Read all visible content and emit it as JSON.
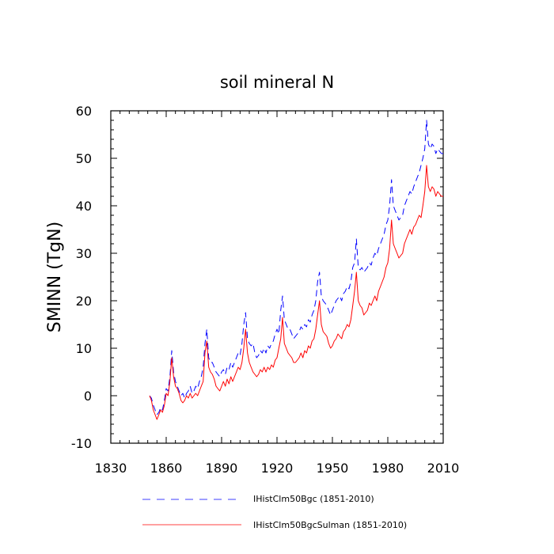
{
  "chart_data": {
    "type": "line",
    "title": "soil mineral N",
    "ylabel": "SMINN  (TgN)",
    "xlabel": "",
    "xlim": [
      1830,
      2010
    ],
    "ylim": [
      -10,
      60
    ],
    "x_ticks": [
      1830,
      1860,
      1890,
      1920,
      1950,
      1980,
      2010
    ],
    "y_ticks": [
      -10,
      0,
      10,
      20,
      30,
      40,
      50,
      60
    ],
    "grid": false,
    "legend_position": "bottom",
    "series": [
      {
        "name": "IHistClm50Bgc (1851-2010)",
        "color": "#0000ff",
        "dash": "dashed",
        "points": [
          [
            1851,
            0
          ],
          [
            1852,
            -0.5
          ],
          [
            1853,
            -2
          ],
          [
            1854,
            -3
          ],
          [
            1855,
            -4
          ],
          [
            1856,
            -3.5
          ],
          [
            1857,
            -2.5
          ],
          [
            1858,
            -3
          ],
          [
            1859,
            -1
          ],
          [
            1860,
            1.5
          ],
          [
            1861,
            1
          ],
          [
            1862,
            4
          ],
          [
            1863,
            9.5
          ],
          [
            1864,
            5
          ],
          [
            1865,
            3
          ],
          [
            1866,
            2
          ],
          [
            1867,
            1
          ],
          [
            1868,
            0
          ],
          [
            1869,
            0.5
          ],
          [
            1870,
            -0.5
          ],
          [
            1871,
            0.5
          ],
          [
            1872,
            1
          ],
          [
            1873,
            2
          ],
          [
            1874,
            0.5
          ],
          [
            1875,
            1
          ],
          [
            1876,
            2
          ],
          [
            1877,
            1.5
          ],
          [
            1878,
            3
          ],
          [
            1879,
            4
          ],
          [
            1880,
            6
          ],
          [
            1881,
            11
          ],
          [
            1882,
            14
          ],
          [
            1883,
            8
          ],
          [
            1884,
            7
          ],
          [
            1885,
            7
          ],
          [
            1886,
            6
          ],
          [
            1887,
            5
          ],
          [
            1888,
            4.5
          ],
          [
            1889,
            4
          ],
          [
            1890,
            5
          ],
          [
            1891,
            5.5
          ],
          [
            1892,
            4.5
          ],
          [
            1893,
            6
          ],
          [
            1894,
            5.5
          ],
          [
            1895,
            7
          ],
          [
            1896,
            6
          ],
          [
            1897,
            7
          ],
          [
            1898,
            8
          ],
          [
            1899,
            9
          ],
          [
            1900,
            8.5
          ],
          [
            1901,
            11
          ],
          [
            1902,
            15
          ],
          [
            1903,
            17.5
          ],
          [
            1904,
            12
          ],
          [
            1905,
            11
          ],
          [
            1906,
            10.5
          ],
          [
            1907,
            11
          ],
          [
            1908,
            9
          ],
          [
            1909,
            8
          ],
          [
            1910,
            8.5
          ],
          [
            1911,
            9.5
          ],
          [
            1912,
            9
          ],
          [
            1913,
            10
          ],
          [
            1914,
            9
          ],
          [
            1915,
            10.5
          ],
          [
            1916,
            10
          ],
          [
            1917,
            11
          ],
          [
            1918,
            11.5
          ],
          [
            1919,
            13
          ],
          [
            1920,
            14
          ],
          [
            1921,
            13
          ],
          [
            1922,
            18
          ],
          [
            1923,
            21
          ],
          [
            1924,
            16
          ],
          [
            1925,
            15
          ],
          [
            1926,
            14
          ],
          [
            1927,
            14
          ],
          [
            1928,
            13
          ],
          [
            1929,
            12
          ],
          [
            1930,
            12.5
          ],
          [
            1931,
            13
          ],
          [
            1932,
            13.5
          ],
          [
            1933,
            14.5
          ],
          [
            1934,
            14
          ],
          [
            1935,
            15
          ],
          [
            1936,
            14.5
          ],
          [
            1937,
            16
          ],
          [
            1938,
            15.5
          ],
          [
            1939,
            17
          ],
          [
            1940,
            18
          ],
          [
            1941,
            20
          ],
          [
            1942,
            24
          ],
          [
            1943,
            26
          ],
          [
            1944,
            21
          ],
          [
            1945,
            20
          ],
          [
            1946,
            19.5
          ],
          [
            1947,
            19
          ],
          [
            1948,
            18
          ],
          [
            1949,
            17
          ],
          [
            1950,
            18
          ],
          [
            1951,
            19
          ],
          [
            1952,
            20
          ],
          [
            1953,
            20.5
          ],
          [
            1954,
            21
          ],
          [
            1955,
            20
          ],
          [
            1956,
            21.5
          ],
          [
            1957,
            22
          ],
          [
            1958,
            23
          ],
          [
            1959,
            22.5
          ],
          [
            1960,
            24
          ],
          [
            1961,
            27
          ],
          [
            1962,
            28
          ],
          [
            1963,
            33
          ],
          [
            1964,
            27
          ],
          [
            1965,
            26.5
          ],
          [
            1966,
            27
          ],
          [
            1967,
            26
          ],
          [
            1968,
            26.5
          ],
          [
            1969,
            27
          ],
          [
            1970,
            28
          ],
          [
            1971,
            27.5
          ],
          [
            1972,
            29
          ],
          [
            1973,
            30
          ],
          [
            1974,
            29.5
          ],
          [
            1975,
            31
          ],
          [
            1976,
            32
          ],
          [
            1977,
            33
          ],
          [
            1978,
            34
          ],
          [
            1979,
            36
          ],
          [
            1980,
            37
          ],
          [
            1981,
            40
          ],
          [
            1982,
            45.5
          ],
          [
            1983,
            40
          ],
          [
            1984,
            39
          ],
          [
            1985,
            38
          ],
          [
            1986,
            37
          ],
          [
            1987,
            37.5
          ],
          [
            1988,
            38
          ],
          [
            1989,
            40
          ],
          [
            1990,
            41
          ],
          [
            1991,
            42
          ],
          [
            1992,
            43
          ],
          [
            1993,
            42.5
          ],
          [
            1994,
            44
          ],
          [
            1995,
            45
          ],
          [
            1996,
            46
          ],
          [
            1997,
            47
          ],
          [
            1998,
            48.5
          ],
          [
            1999,
            50
          ],
          [
            2000,
            52
          ],
          [
            2001,
            58
          ],
          [
            2002,
            53
          ],
          [
            2003,
            52
          ],
          [
            2004,
            53
          ],
          [
            2005,
            52.5
          ],
          [
            2006,
            51
          ],
          [
            2007,
            52
          ],
          [
            2008,
            51.5
          ],
          [
            2009,
            51
          ],
          [
            2010,
            51
          ]
        ]
      },
      {
        "name": "IHistClm50BgcSulman (1851-2010)",
        "color": "#ff0000",
        "dash": "solid",
        "points": [
          [
            1851,
            0
          ],
          [
            1852,
            -1
          ],
          [
            1853,
            -3
          ],
          [
            1854,
            -4
          ],
          [
            1855,
            -5
          ],
          [
            1856,
            -4
          ],
          [
            1857,
            -3
          ],
          [
            1858,
            -3.5
          ],
          [
            1859,
            -2
          ],
          [
            1860,
            0.5
          ],
          [
            1861,
            0
          ],
          [
            1862,
            3
          ],
          [
            1863,
            8
          ],
          [
            1864,
            4
          ],
          [
            1865,
            2
          ],
          [
            1866,
            1.5
          ],
          [
            1867,
            0.5
          ],
          [
            1868,
            -1
          ],
          [
            1869,
            -1.5
          ],
          [
            1870,
            -1
          ],
          [
            1871,
            0
          ],
          [
            1872,
            -0.5
          ],
          [
            1873,
            0.5
          ],
          [
            1874,
            -0.5
          ],
          [
            1875,
            0
          ],
          [
            1876,
            0.5
          ],
          [
            1877,
            0
          ],
          [
            1878,
            1
          ],
          [
            1879,
            2
          ],
          [
            1880,
            3
          ],
          [
            1881,
            9
          ],
          [
            1882,
            11.5
          ],
          [
            1883,
            6
          ],
          [
            1884,
            5
          ],
          [
            1885,
            4.5
          ],
          [
            1886,
            3.5
          ],
          [
            1887,
            2
          ],
          [
            1888,
            1.5
          ],
          [
            1889,
            1
          ],
          [
            1890,
            2
          ],
          [
            1891,
            3
          ],
          [
            1892,
            2
          ],
          [
            1893,
            3.5
          ],
          [
            1894,
            2.5
          ],
          [
            1895,
            4
          ],
          [
            1896,
            3
          ],
          [
            1897,
            4
          ],
          [
            1898,
            5
          ],
          [
            1899,
            6
          ],
          [
            1900,
            5.5
          ],
          [
            1901,
            7
          ],
          [
            1902,
            10
          ],
          [
            1903,
            14
          ],
          [
            1904,
            9
          ],
          [
            1905,
            7
          ],
          [
            1906,
            6
          ],
          [
            1907,
            5
          ],
          [
            1908,
            4.5
          ],
          [
            1909,
            4
          ],
          [
            1910,
            4.5
          ],
          [
            1911,
            5.5
          ],
          [
            1912,
            5
          ],
          [
            1913,
            6
          ],
          [
            1914,
            5
          ],
          [
            1915,
            6
          ],
          [
            1916,
            5.5
          ],
          [
            1917,
            6.5
          ],
          [
            1918,
            6
          ],
          [
            1919,
            7.5
          ],
          [
            1920,
            8
          ],
          [
            1921,
            10
          ],
          [
            1922,
            12
          ],
          [
            1923,
            16.5
          ],
          [
            1924,
            11
          ],
          [
            1925,
            10
          ],
          [
            1926,
            9
          ],
          [
            1927,
            8.5
          ],
          [
            1928,
            8
          ],
          [
            1929,
            7
          ],
          [
            1930,
            7
          ],
          [
            1931,
            7.5
          ],
          [
            1932,
            8
          ],
          [
            1933,
            9
          ],
          [
            1934,
            8
          ],
          [
            1935,
            9.5
          ],
          [
            1936,
            9
          ],
          [
            1937,
            10.5
          ],
          [
            1938,
            10
          ],
          [
            1939,
            11.5
          ],
          [
            1940,
            12
          ],
          [
            1941,
            14
          ],
          [
            1942,
            17
          ],
          [
            1943,
            20
          ],
          [
            1944,
            15
          ],
          [
            1945,
            13.5
          ],
          [
            1946,
            13
          ],
          [
            1947,
            12.5
          ],
          [
            1948,
            11
          ],
          [
            1949,
            10
          ],
          [
            1950,
            10.5
          ],
          [
            1951,
            11.5
          ],
          [
            1952,
            12
          ],
          [
            1953,
            13
          ],
          [
            1954,
            12.5
          ],
          [
            1955,
            12
          ],
          [
            1956,
            13.5
          ],
          [
            1957,
            14
          ],
          [
            1958,
            15
          ],
          [
            1959,
            14.5
          ],
          [
            1960,
            16
          ],
          [
            1961,
            19
          ],
          [
            1962,
            22
          ],
          [
            1963,
            26
          ],
          [
            1964,
            20
          ],
          [
            1965,
            19
          ],
          [
            1966,
            18.5
          ],
          [
            1967,
            17
          ],
          [
            1968,
            17.5
          ],
          [
            1969,
            18
          ],
          [
            1970,
            19.5
          ],
          [
            1971,
            19
          ],
          [
            1972,
            20
          ],
          [
            1973,
            21
          ],
          [
            1974,
            20
          ],
          [
            1975,
            22
          ],
          [
            1976,
            23
          ],
          [
            1977,
            24
          ],
          [
            1978,
            25
          ],
          [
            1979,
            27
          ],
          [
            1980,
            28
          ],
          [
            1981,
            31
          ],
          [
            1982,
            37
          ],
          [
            1983,
            32
          ],
          [
            1984,
            31
          ],
          [
            1985,
            30
          ],
          [
            1986,
            29
          ],
          [
            1987,
            29.5
          ],
          [
            1988,
            30
          ],
          [
            1989,
            32
          ],
          [
            1990,
            33
          ],
          [
            1991,
            34
          ],
          [
            1992,
            35
          ],
          [
            1993,
            34
          ],
          [
            1994,
            35.5
          ],
          [
            1995,
            36
          ],
          [
            1996,
            37
          ],
          [
            1997,
            38
          ],
          [
            1998,
            37.5
          ],
          [
            1999,
            40
          ],
          [
            2000,
            43
          ],
          [
            2001,
            48.5
          ],
          [
            2002,
            44
          ],
          [
            2003,
            43
          ],
          [
            2004,
            44
          ],
          [
            2005,
            43.5
          ],
          [
            2006,
            42
          ],
          [
            2007,
            43
          ],
          [
            2008,
            42.5
          ],
          [
            2009,
            42
          ],
          [
            2010,
            42
          ]
        ]
      }
    ]
  }
}
